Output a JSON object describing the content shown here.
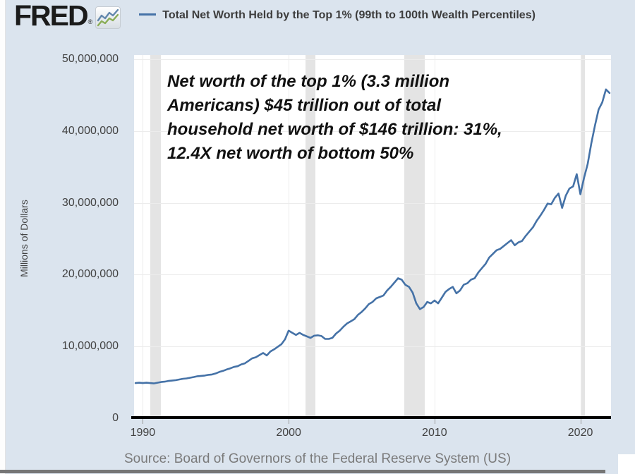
{
  "header": {
    "logo_text": "FRED",
    "registered_mark": "®",
    "icon": "fred-sparkline-icon",
    "legend_label": "Total Net Worth Held by the Top 1% (99th to 100th Wealth Percentiles)"
  },
  "annotation": {
    "lines": [
      "Net worth of the top 1% (3.3 million",
      "Americans) $45 trillion out of total",
      "household net worth of $146 trillion: 31%,",
      "12.4X net worth of bottom 50%"
    ]
  },
  "source": "Source: Board of Governors of the Federal Reserve System (US)",
  "colors": {
    "background": "#dbe4ee",
    "plot_background": "#ffffff",
    "line": "#4572a7",
    "recession_band": "#e4e4e4",
    "gridline": "#ececec",
    "axis_text": "#424242",
    "source_text": "#7a7a7a",
    "axis_line": "#000000",
    "icon_blue": "#6287ac",
    "icon_green": "#8aad56"
  },
  "chart_data": {
    "type": "line",
    "title": "Total Net Worth Held by the Top 1% (99th to 100th Wealth Percentiles)",
    "ylabel": "Millions of Dollars",
    "units": "Millions of Dollars",
    "frequency": "Quarterly",
    "grid": true,
    "legend_position": "top-left",
    "x_range": [
      1989.4,
      2022.1
    ],
    "y_range": [
      0,
      50000000
    ],
    "x_ticks": [
      1990,
      2000,
      2010,
      2020
    ],
    "x_tick_labels": [
      "1990",
      "2000",
      "2010",
      "2020"
    ],
    "y_ticks": [
      0,
      10000000,
      20000000,
      30000000,
      40000000,
      50000000
    ],
    "y_tick_labels": [
      "0",
      "10,000,000",
      "20,000,000",
      "30,000,000",
      "40,000,000",
      "50,000,000"
    ],
    "recession_bands": [
      [
        1990.5,
        1991.25
      ],
      [
        2001.17,
        2001.83
      ],
      [
        2007.92,
        2009.33
      ],
      [
        2020.08,
        2020.33
      ]
    ],
    "x_start": 1989.5,
    "x_step": 0.25,
    "values_millions": [
      4900000,
      4950000,
      4900000,
      4950000,
      4900000,
      4850000,
      4950000,
      5050000,
      5100000,
      5200000,
      5250000,
      5300000,
      5400000,
      5500000,
      5550000,
      5650000,
      5750000,
      5850000,
      5900000,
      5950000,
      6050000,
      6100000,
      6250000,
      6450000,
      6600000,
      6800000,
      6950000,
      7150000,
      7250000,
      7500000,
      7650000,
      8000000,
      8350000,
      8500000,
      8800000,
      9100000,
      8750000,
      9300000,
      9600000,
      9950000,
      10300000,
      11000000,
      12200000,
      11900000,
      11600000,
      11900000,
      11600000,
      11400000,
      11200000,
      11500000,
      11550000,
      11450000,
      11050000,
      11050000,
      11200000,
      11800000,
      12200000,
      12750000,
      13200000,
      13500000,
      13800000,
      14400000,
      14800000,
      15300000,
      15900000,
      16200000,
      16700000,
      16900000,
      17100000,
      17800000,
      18300000,
      18900000,
      19500000,
      19300000,
      18600000,
      18300000,
      17500000,
      16000000,
      15200000,
      15500000,
      16200000,
      16000000,
      16400000,
      16000000,
      16800000,
      17600000,
      18000000,
      18300000,
      17400000,
      17800000,
      18600000,
      18800000,
      19300000,
      19500000,
      20300000,
      20900000,
      21500000,
      22400000,
      22900000,
      23400000,
      23600000,
      24000000,
      24400000,
      24800000,
      24100000,
      24500000,
      24700000,
      25400000,
      26000000,
      26600000,
      27500000,
      28200000,
      29000000,
      29900000,
      29800000,
      30700000,
      31300000,
      29300000,
      31000000,
      32000000,
      32300000,
      34000000,
      31200000,
      33500000,
      35400000,
      38300000,
      40800000,
      43000000,
      44000000,
      45800000,
      45300000
    ]
  }
}
